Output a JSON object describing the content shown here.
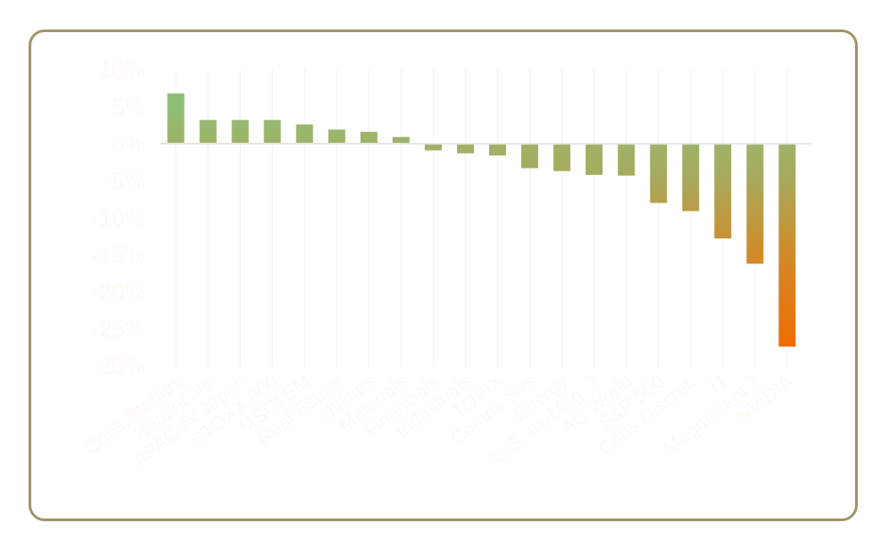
{
  "chart_data": {
    "type": "bar",
    "title": "",
    "xlabel": "",
    "ylabel": "",
    "ylim": [
      -30,
      10
    ],
    "y_ticks": [
      "10%",
      "5%",
      "0%",
      "-5%",
      "-10%",
      "-15%",
      "-20%",
      "-25%",
      "-30%"
    ],
    "grid": "vertical",
    "categories": [
      "Cons.Staples",
      "Healthcare",
      "APAC ex Japan",
      "STOXX 600",
      "MSCI EM",
      "Real Estate",
      "Utilities",
      "Materials",
      "Financials",
      "Industrials",
      "TOPIX",
      "Comm. Svs",
      "Energy",
      "U.S. ex-Mag. 7",
      "AC World",
      "S&P 500",
      "Cons.Discret.",
      "IT",
      "Magnificent 7",
      "NVIDIA"
    ],
    "values": [
      6.8,
      3.2,
      3.2,
      3.2,
      2.6,
      1.9,
      1.6,
      0.9,
      -0.9,
      -1.3,
      -1.6,
      -3.3,
      -3.7,
      -4.2,
      -4.3,
      -8.0,
      -9.1,
      -12.8,
      -16.2,
      -27.4
    ]
  },
  "colors": {
    "frame_border": "#a29468",
    "bar_top": "#8cc37a",
    "bar_mid": "#a9a95c",
    "bar_bottom": "#f26b00",
    "grid": "#f3f1ec",
    "baseline": "#e6e6e6",
    "label": "#fdfaf3"
  }
}
